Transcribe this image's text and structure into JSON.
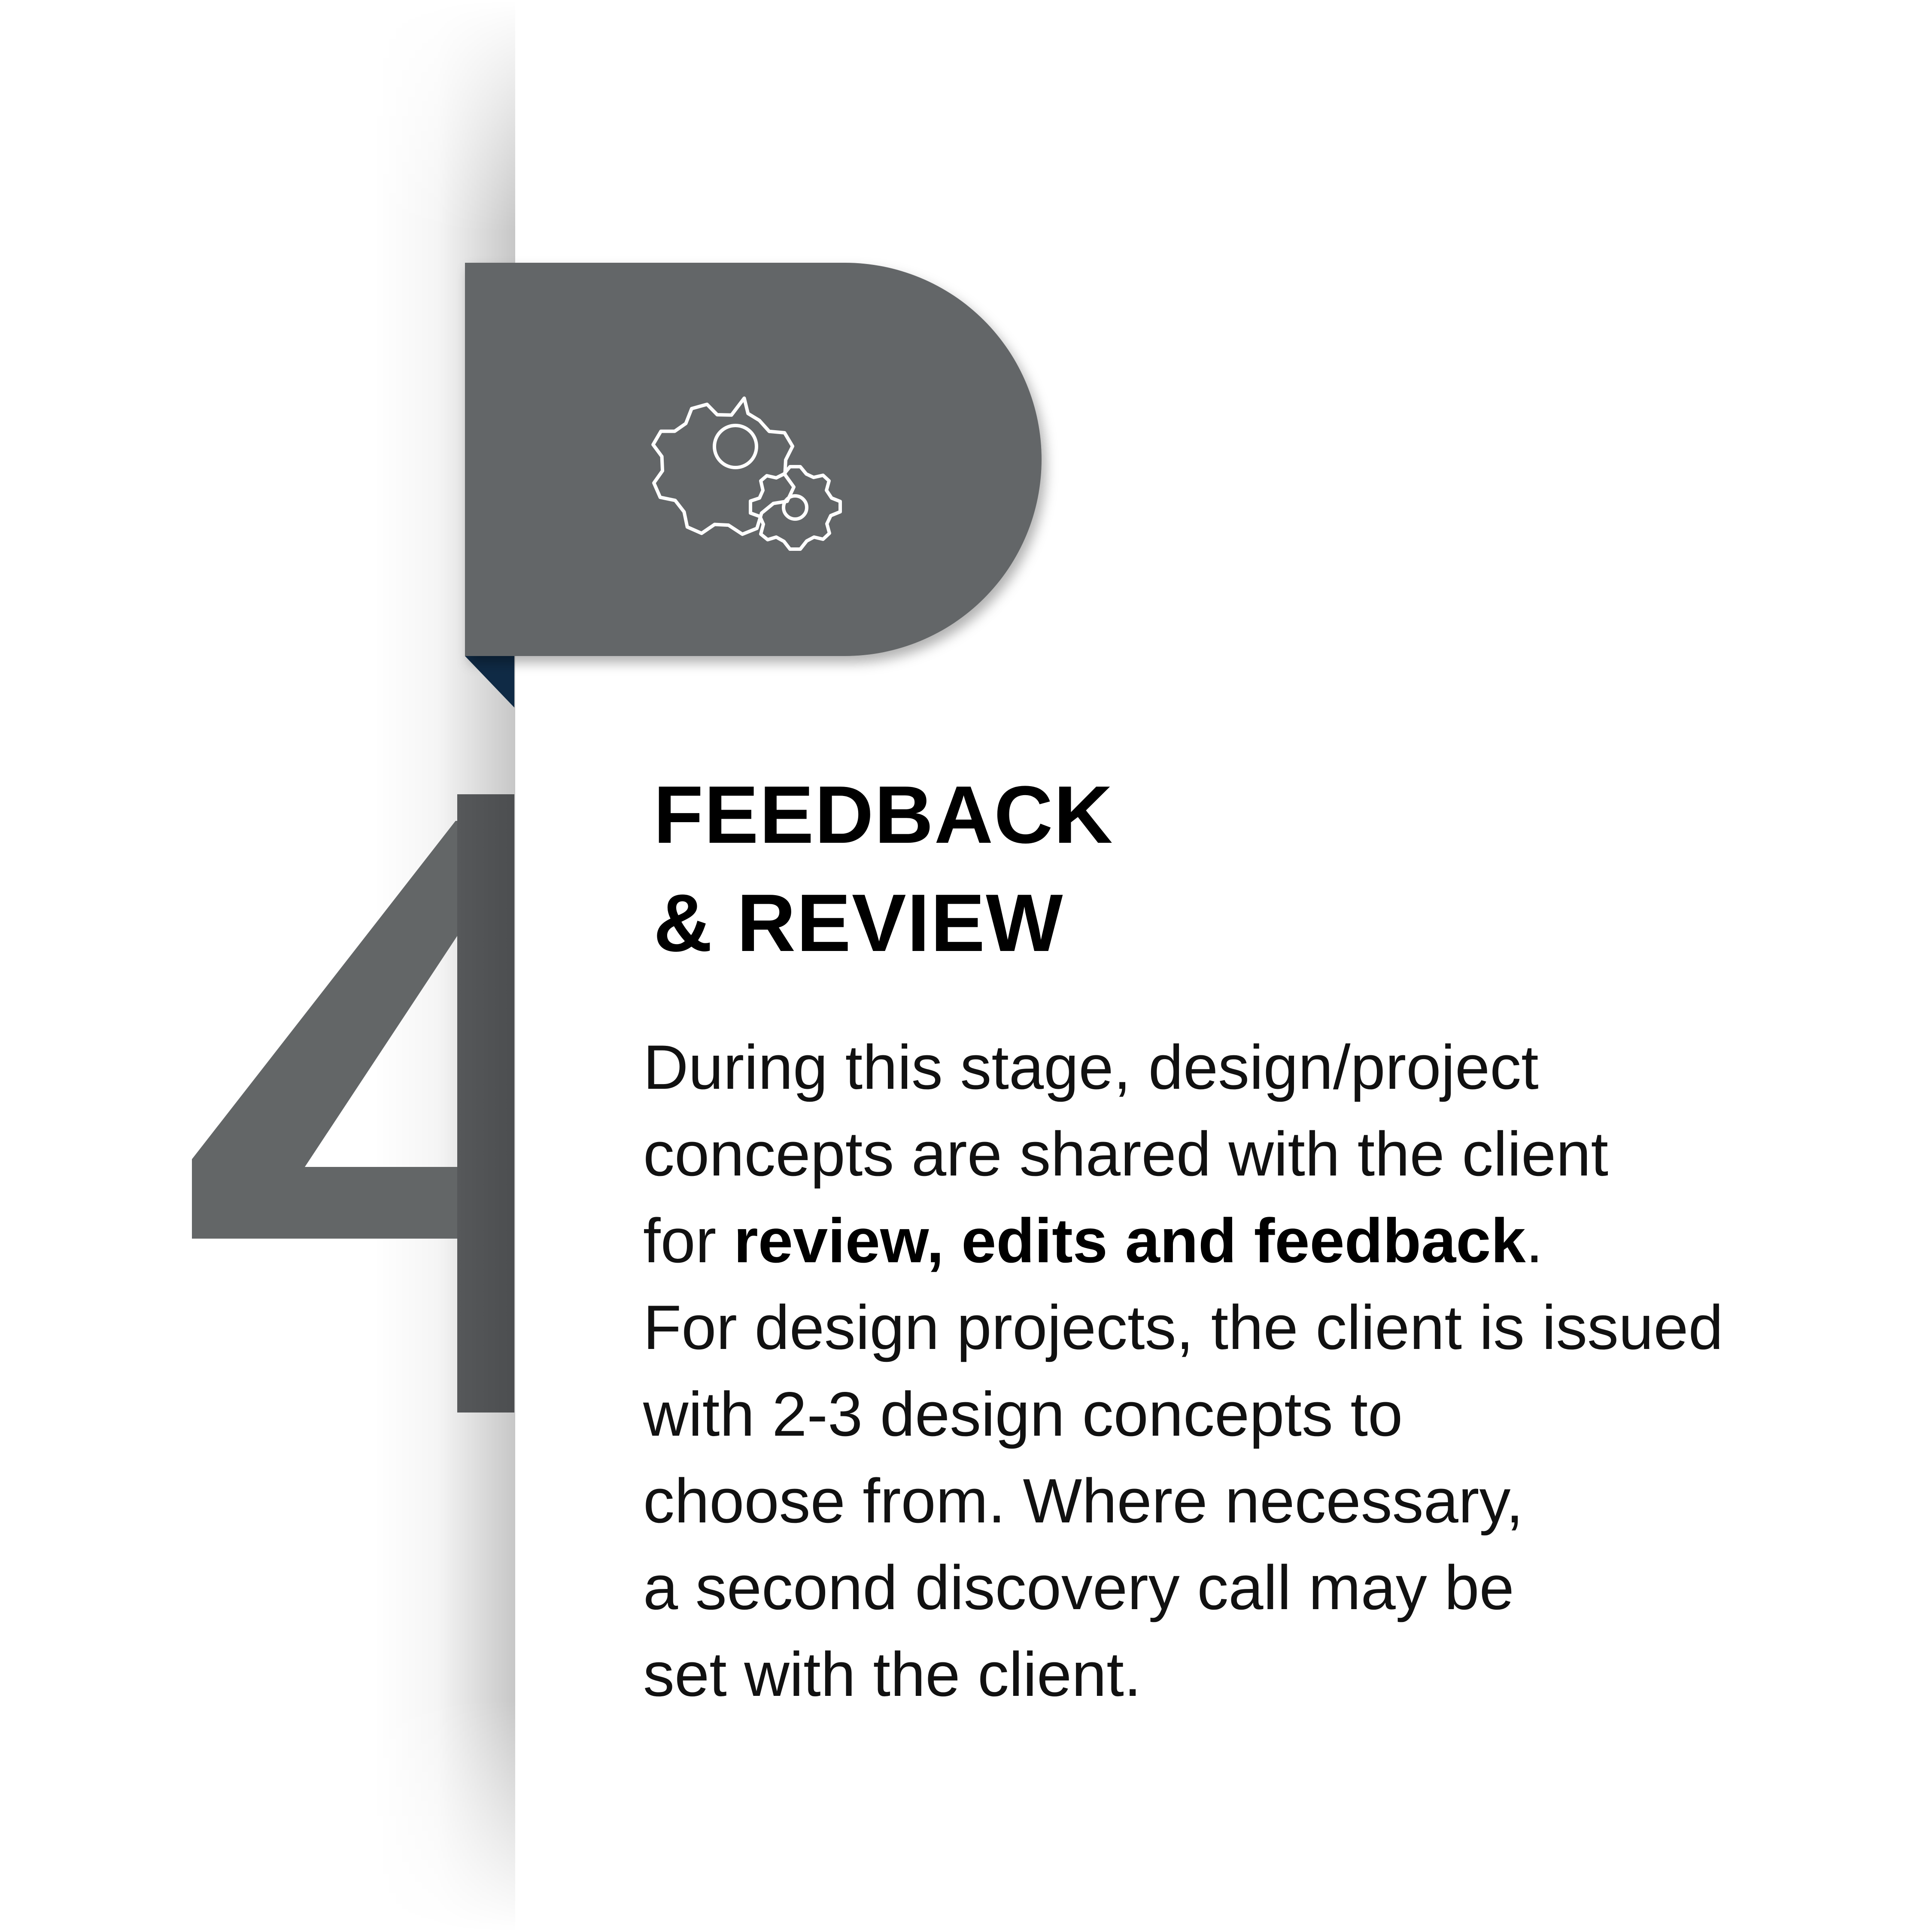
{
  "step": {
    "number": "4",
    "icon": "gears-icon"
  },
  "heading": {
    "line1": "FEEDBACK",
    "line2": "& REVIEW"
  },
  "body": {
    "line1": "During this stage, design/project",
    "line2": "concepts are shared with the client",
    "line3_prefix": "for ",
    "line3_bold": "review, edits and feedback",
    "line3_suffix": ".",
    "line4": "For design projects, the client is issued",
    "line5": "with 2-3 design concepts to",
    "line6": "choose from. Where necessary,",
    "line7": "a second discovery call may be",
    "line8": "set with the client."
  },
  "colors": {
    "tab_gray": "#636667",
    "fold_navy": "#0f2a45",
    "text": "#000000",
    "background": "#ffffff"
  }
}
